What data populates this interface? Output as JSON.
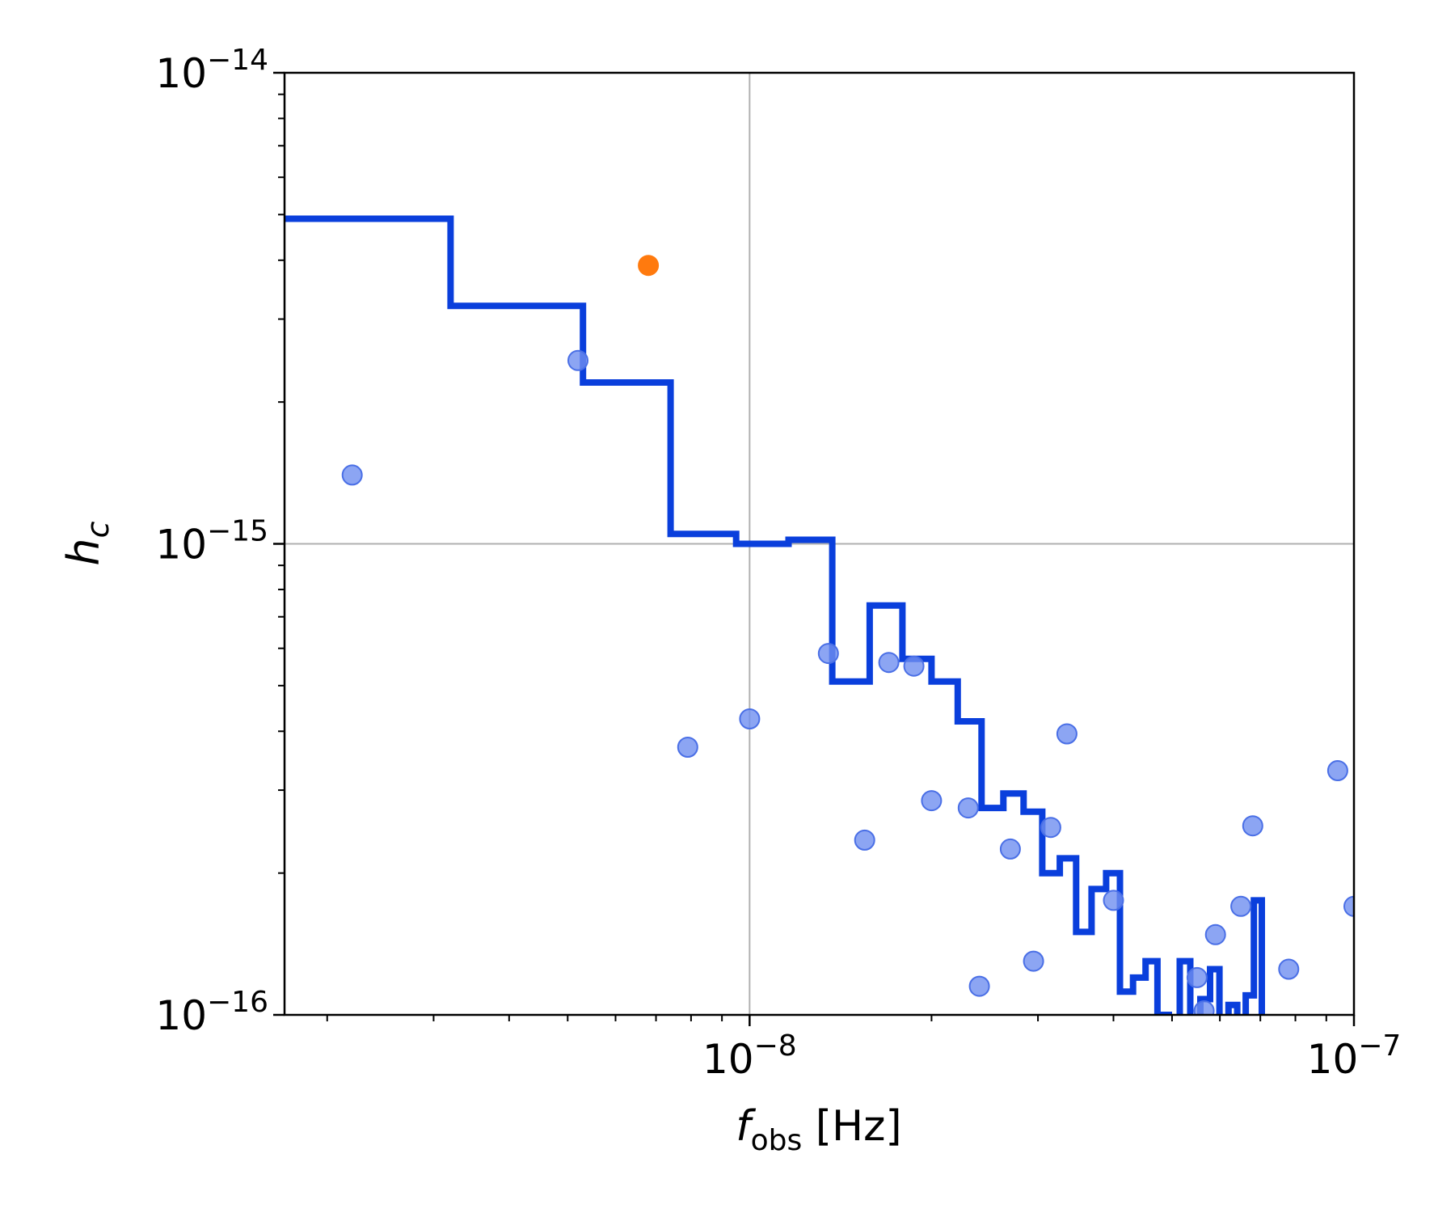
{
  "chart_data": {
    "type": "scatter",
    "title": "",
    "xlabel": {
      "main": "f",
      "sub": "obs",
      "unit": " [Hz]"
    },
    "ylabel": {
      "main": "h",
      "sub": "c"
    },
    "x_scale": "log",
    "y_scale": "log",
    "xlim": [
      1.7e-09,
      1e-07
    ],
    "ylim": [
      1e-16,
      1e-14
    ],
    "grid": true,
    "legend": "none",
    "x_ticks": [
      {
        "value": 1e-08,
        "base": "10",
        "exp": "−8"
      },
      {
        "value": 1e-07,
        "base": "10",
        "exp": "−7"
      }
    ],
    "y_ticks": [
      {
        "value": 1e-16,
        "base": "10",
        "exp": "−16"
      },
      {
        "value": 1e-15,
        "base": "10",
        "exp": "−15"
      },
      {
        "value": 1e-14,
        "base": "10",
        "exp": "−14"
      }
    ],
    "series": [
      {
        "kind": "step",
        "color": "#0a3fdc",
        "points": [
          [
            1.7e-09,
            4.9e-15
          ],
          [
            3.2e-09,
            4.9e-15
          ],
          [
            3.2e-09,
            3.2e-15
          ],
          [
            5.3e-09,
            3.2e-15
          ],
          [
            5.3e-09,
            2.2e-15
          ],
          [
            7.4e-09,
            2.2e-15
          ],
          [
            7.4e-09,
            1.05e-15
          ],
          [
            9.5e-09,
            1.05e-15
          ],
          [
            9.5e-09,
            1e-15
          ],
          [
            1.16e-08,
            1e-15
          ],
          [
            1.16e-08,
            1.02e-15
          ],
          [
            1.37e-08,
            1.02e-15
          ],
          [
            1.37e-08,
            5.1e-16
          ],
          [
            1.58e-08,
            5.1e-16
          ],
          [
            1.58e-08,
            7.4e-16
          ],
          [
            1.79e-08,
            7.4e-16
          ],
          [
            1.79e-08,
            5.7e-16
          ],
          [
            2e-08,
            5.7e-16
          ],
          [
            2e-08,
            5.1e-16
          ],
          [
            2.21e-08,
            5.1e-16
          ],
          [
            2.21e-08,
            4.2e-16
          ],
          [
            2.42e-08,
            4.2e-16
          ],
          [
            2.42e-08,
            2.75e-16
          ],
          [
            2.63e-08,
            2.75e-16
          ],
          [
            2.63e-08,
            2.95e-16
          ],
          [
            2.84e-08,
            2.95e-16
          ],
          [
            2.84e-08,
            2.7e-16
          ],
          [
            3.05e-08,
            2.7e-16
          ],
          [
            3.05e-08,
            2e-16
          ],
          [
            3.26e-08,
            2e-16
          ],
          [
            3.26e-08,
            2.15e-16
          ],
          [
            3.47e-08,
            2.15e-16
          ],
          [
            3.47e-08,
            1.5e-16
          ],
          [
            3.68e-08,
            1.5e-16
          ],
          [
            3.68e-08,
            1.85e-16
          ],
          [
            3.89e-08,
            1.85e-16
          ],
          [
            3.89e-08,
            2e-16
          ],
          [
            4.1e-08,
            2e-16
          ],
          [
            4.1e-08,
            1.12e-16
          ],
          [
            4.31e-08,
            1.12e-16
          ],
          [
            4.31e-08,
            1.2e-16
          ],
          [
            4.52e-08,
            1.2e-16
          ],
          [
            4.52e-08,
            1.3e-16
          ],
          [
            4.73e-08,
            1.3e-16
          ],
          [
            4.73e-08,
            1e-16
          ],
          [
            4.94e-08,
            1e-16
          ],
          [
            4.94e-08,
            9.8e-17
          ],
          [
            5.15e-08,
            9.8e-17
          ],
          [
            5.15e-08,
            1.3e-16
          ],
          [
            5.36e-08,
            1.3e-16
          ],
          [
            5.36e-08,
            9.8e-17
          ],
          [
            5.57e-08,
            9.8e-17
          ],
          [
            5.57e-08,
            1.08e-16
          ],
          [
            5.78e-08,
            1.08e-16
          ],
          [
            5.78e-08,
            1.25e-16
          ],
          [
            5.99e-08,
            1.25e-16
          ],
          [
            5.99e-08,
            9.8e-17
          ],
          [
            6.2e-08,
            9.8e-17
          ],
          [
            6.2e-08,
            1.05e-16
          ],
          [
            6.41e-08,
            1.05e-16
          ],
          [
            6.41e-08,
            9.8e-17
          ],
          [
            6.62e-08,
            9.8e-17
          ],
          [
            6.62e-08,
            1.1e-16
          ],
          [
            6.83e-08,
            1.1e-16
          ],
          [
            6.83e-08,
            1.75e-16
          ],
          [
            7.04e-08,
            1.75e-16
          ],
          [
            7.04e-08,
            9.8e-17
          ]
        ]
      },
      {
        "kind": "scatter",
        "color": "#6f8ff0",
        "edge": "#4a6fe6",
        "points": [
          [
            2.2e-09,
            1.4e-15
          ],
          [
            5.2e-09,
            2.45e-15
          ],
          [
            7.9e-09,
            3.7e-16
          ],
          [
            1e-08,
            4.25e-16
          ],
          [
            1.35e-08,
            5.85e-16
          ],
          [
            1.55e-08,
            2.35e-16
          ],
          [
            1.7e-08,
            5.6e-16
          ],
          [
            1.87e-08,
            5.5e-16
          ],
          [
            2e-08,
            2.85e-16
          ],
          [
            2.3e-08,
            2.75e-16
          ],
          [
            2.4e-08,
            1.15e-16
          ],
          [
            2.7e-08,
            2.25e-16
          ],
          [
            2.95e-08,
            1.3e-16
          ],
          [
            3.15e-08,
            2.5e-16
          ],
          [
            3.35e-08,
            3.95e-16
          ],
          [
            4e-08,
            1.75e-16
          ],
          [
            5.5e-08,
            1.2e-16
          ],
          [
            5.65e-08,
            1.02e-16
          ],
          [
            5.9e-08,
            1.48e-16
          ],
          [
            6.5e-08,
            1.7e-16
          ],
          [
            6.8e-08,
            2.52e-16
          ],
          [
            7.8e-08,
            1.25e-16
          ],
          [
            9.4e-08,
            3.3e-16
          ],
          [
            1e-07,
            1.7e-16
          ]
        ]
      },
      {
        "kind": "scatter",
        "color": "#ff7a0e",
        "edge": "#ff7a0e",
        "points": [
          [
            6.8e-09,
            3.9e-15
          ]
        ]
      }
    ]
  }
}
